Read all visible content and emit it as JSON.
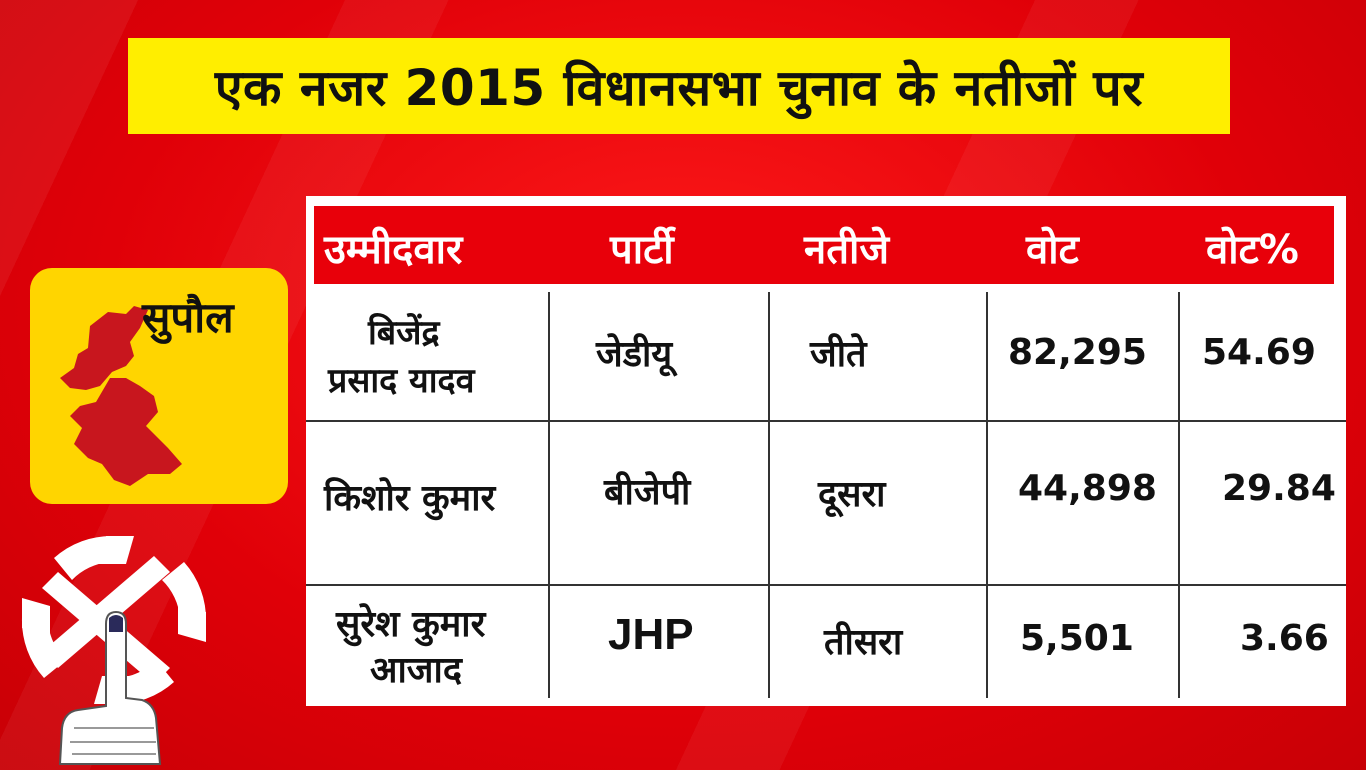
{
  "title": "एक नजर 2015 विधानसभा चुनाव के नतीजों पर",
  "district": {
    "name": "सुपौल",
    "map_color": "#c8161e",
    "card_color": "#ffd500"
  },
  "colors": {
    "background": "#e8000a",
    "title_bar": "#ffee00",
    "header_row": "#e8000a"
  },
  "table": {
    "headers": [
      "उम्मीदवार",
      "पार्टी",
      "नतीजे",
      "वोट",
      "वोट%"
    ],
    "rows": [
      {
        "candidate_line1": "बिजेंद्र",
        "candidate_line2": "प्रसाद यादव",
        "party": "जेडीयू",
        "result": "जीते",
        "votes": "82,295",
        "vote_pct": "54.69"
      },
      {
        "candidate_line1": "किशोर कुमार",
        "candidate_line2": "",
        "party": "बीजेपी",
        "result": "दूसरा",
        "votes": "44,898",
        "vote_pct": "29.84"
      },
      {
        "candidate_line1": "सुरेश कुमार",
        "candidate_line2": "आजाद",
        "party": "JHP",
        "result": "तीसरा",
        "votes": "5,501",
        "vote_pct": "3.66"
      }
    ]
  },
  "icons": [
    "district-map-icon",
    "election-swastika-voting-finger-icon"
  ]
}
